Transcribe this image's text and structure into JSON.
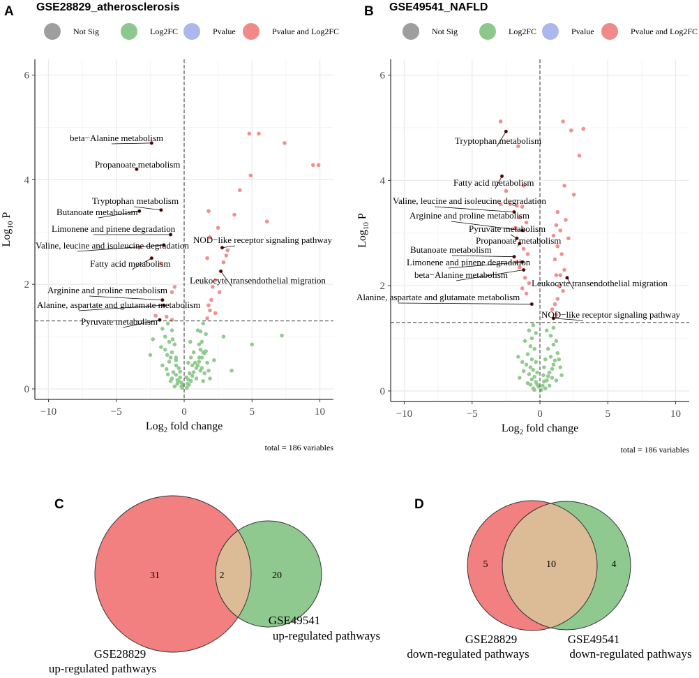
{
  "colors": {
    "not_sig": "#9e9e9e",
    "log2fc": "#8cc88c",
    "pvalue": "#aab8ee",
    "pvalue_and_log2fc": "#f08a8a",
    "venn_left": "#f28080",
    "venn_right": "#8fc98f",
    "venn_overlap": "#dcbc96",
    "grid": "#ebebeb"
  },
  "legend": [
    "Not Sig",
    "Log2FC",
    "Pvalue",
    "Pvalue and Log2FC"
  ],
  "chart_data": [
    {
      "type": "scatter",
      "panel": "A",
      "title": "GSE28829_atherosclerosis",
      "xlabel_main": "Log",
      "xlabel_sub": "2",
      "xlabel_rest": " fold change",
      "ylabel_main": "Log",
      "ylabel_sub": "10",
      "ylabel_rest": " P",
      "xlim": [
        -11,
        11
      ],
      "ylim": [
        -0.2,
        6.3
      ],
      "xticks": [
        -10,
        -5,
        0,
        5,
        10
      ],
      "yticks": [
        0,
        2,
        4,
        6
      ],
      "xtick_labels": [
        "−10",
        "−5",
        "0",
        "5",
        "10"
      ],
      "ytick_labels": [
        "0",
        "2",
        "4",
        "6"
      ],
      "pvalue_cutoff": 1.3,
      "fc_cutoff": 0,
      "total_label": "total = 186 variables",
      "sig_points": [
        [
          4.8,
          4.88
        ],
        [
          5.5,
          4.88
        ],
        [
          7.4,
          4.7
        ],
        [
          9.5,
          4.28
        ],
        [
          9.9,
          4.28
        ],
        [
          4.9,
          4.08
        ],
        [
          4.1,
          3.8
        ],
        [
          1.8,
          3.4
        ],
        [
          3.7,
          3.33
        ],
        [
          6.1,
          3.2
        ],
        [
          2.5,
          3.08
        ],
        [
          1.9,
          2.9
        ],
        [
          2.8,
          2.7
        ],
        [
          3.2,
          2.65
        ],
        [
          1.7,
          2.5
        ],
        [
          3.1,
          2.55
        ],
        [
          2.9,
          2.42
        ],
        [
          2.7,
          2.25
        ],
        [
          2.3,
          2.08
        ],
        [
          2.1,
          1.95
        ],
        [
          2.6,
          1.85
        ],
        [
          2.0,
          1.7
        ],
        [
          1.8,
          1.6
        ],
        [
          1.9,
          1.5
        ],
        [
          2.3,
          1.45
        ],
        [
          1.7,
          1.35
        ],
        [
          -2.4,
          4.7
        ],
        [
          -3.5,
          4.2
        ],
        [
          -3.3,
          3.4
        ],
        [
          -1.7,
          3.42
        ],
        [
          -1.0,
          2.95
        ],
        [
          -1.5,
          2.75
        ],
        [
          -3.3,
          2.7
        ],
        [
          -2.4,
          2.5
        ],
        [
          -1.7,
          2.4
        ],
        [
          -0.7,
          1.95
        ],
        [
          -0.9,
          1.85
        ],
        [
          -1.6,
          1.7
        ],
        [
          -1.5,
          1.6
        ],
        [
          -2.1,
          1.4
        ],
        [
          -1.3,
          1.38
        ],
        [
          -1.8,
          1.32
        ],
        [
          -0.9,
          1.32
        ]
      ],
      "nonsig_points": [
        [
          -1.2,
          1.25
        ],
        [
          -1.6,
          1.15
        ],
        [
          -0.9,
          1.12
        ],
        [
          -1.4,
          1.0
        ],
        [
          -2.3,
          0.95
        ],
        [
          -1.1,
          0.9
        ],
        [
          -0.7,
          0.85
        ],
        [
          -2.5,
          0.65
        ],
        [
          -1.4,
          0.75
        ],
        [
          -0.9,
          0.7
        ],
        [
          -0.6,
          0.6
        ],
        [
          -1.1,
          0.52
        ],
        [
          -0.6,
          0.45
        ],
        [
          -0.4,
          0.4
        ],
        [
          -1.3,
          0.38
        ],
        [
          -0.8,
          0.32
        ],
        [
          -0.6,
          0.27
        ],
        [
          -0.3,
          0.22
        ],
        [
          -0.5,
          0.17
        ],
        [
          -0.2,
          0.12
        ],
        [
          -0.1,
          0.08
        ],
        [
          -0.7,
          0.05
        ],
        [
          -1.0,
          0.6
        ],
        [
          -1.6,
          0.45
        ],
        [
          -1.7,
          0.8
        ],
        [
          -1.2,
          0.28
        ],
        [
          -0.4,
          0.15
        ],
        [
          -0.9,
          0.2
        ],
        [
          -0.3,
          0.33
        ],
        [
          -0.2,
          0.05
        ],
        [
          -0.15,
          0.02
        ],
        [
          -1.0,
          0.15
        ],
        [
          -0.5,
          0.1
        ],
        [
          -0.6,
          0.55
        ],
        [
          -0.85,
          0.95
        ],
        [
          -1.25,
          0.65
        ],
        [
          0.2,
          0.02
        ],
        [
          0.25,
          0.1
        ],
        [
          0.3,
          0.18
        ],
        [
          0.5,
          0.15
        ],
        [
          0.6,
          0.25
        ],
        [
          0.7,
          0.32
        ],
        [
          0.9,
          0.4
        ],
        [
          1.0,
          0.45
        ],
        [
          1.1,
          0.52
        ],
        [
          1.3,
          0.6
        ],
        [
          1.5,
          0.68
        ],
        [
          1.6,
          0.72
        ],
        [
          1.4,
          0.7
        ],
        [
          1.2,
          0.75
        ],
        [
          1.1,
          0.85
        ],
        [
          0.8,
          0.5
        ],
        [
          0.6,
          0.45
        ],
        [
          0.4,
          0.3
        ],
        [
          1.2,
          1.1
        ],
        [
          1.0,
          1.12
        ],
        [
          1.4,
          1.25
        ],
        [
          1.6,
          1.05
        ],
        [
          1.1,
          0.6
        ],
        [
          1.3,
          0.4
        ],
        [
          1.5,
          0.3
        ],
        [
          1.8,
          0.35
        ],
        [
          0.9,
          0.2
        ],
        [
          1.4,
          0.15
        ],
        [
          2.2,
          0.55
        ],
        [
          0.5,
          0.6
        ],
        [
          0.3,
          0.5
        ],
        [
          0.35,
          0.08
        ],
        [
          0.15,
          0.22
        ],
        [
          1.7,
          0.5
        ],
        [
          1.2,
          0.35
        ],
        [
          1.9,
          0.2
        ],
        [
          3.5,
          0.35
        ],
        [
          5.0,
          0.85
        ],
        [
          7.2,
          1.02
        ],
        [
          2.9,
          1.0
        ],
        [
          1.3,
          0.9
        ],
        [
          0.7,
          0.7
        ],
        [
          0.45,
          0.9
        ]
      ],
      "annotations": [
        {
          "label": "beta−Alanine metabolism",
          "px": -2.4,
          "py": 4.7
        },
        {
          "label": "Propanoate metabolism",
          "px": -3.5,
          "py": 4.2
        },
        {
          "label": "Tryptophan metabolism",
          "px": -1.7,
          "py": 3.42
        },
        {
          "label": "Butanoate metabolism",
          "px": -3.3,
          "py": 3.4
        },
        {
          "label": "Limonene and pinene degradation",
          "px": -1.0,
          "py": 2.95
        },
        {
          "label": "Valine, leucine and isoleucine degradation",
          "px": -1.5,
          "py": 2.75
        },
        {
          "label": "Fatty acid metabolism",
          "px": -2.4,
          "py": 2.5
        },
        {
          "label": "Arginine and proline metabolism",
          "px": -1.6,
          "py": 1.7
        },
        {
          "label": "Alanine, aspartate and glutamate metabolism",
          "px": -1.5,
          "py": 1.6
        },
        {
          "label": "Pyruvate metabolism",
          "px": -1.8,
          "py": 1.32
        },
        {
          "label": "NOD−like receptor signaling pathway",
          "px": 2.8,
          "py": 2.7
        },
        {
          "label": "Leukocyte transendothelial migration",
          "px": 2.7,
          "py": 2.25
        }
      ]
    },
    {
      "type": "scatter",
      "panel": "B",
      "title": "GSE49541_NAFLD",
      "xlabel_main": "Log",
      "xlabel_sub": "2",
      "xlabel_rest": " fold change",
      "ylabel_main": "Log",
      "ylabel_sub": "10",
      "ylabel_rest": " P",
      "xlim": [
        -11,
        11
      ],
      "ylim": [
        -0.2,
        6.3
      ],
      "xticks": [
        -10,
        -5,
        0,
        5,
        10
      ],
      "yticks": [
        0,
        2,
        4,
        6
      ],
      "xtick_labels": [
        "−10",
        "−5",
        "0",
        "5",
        "10"
      ],
      "ytick_labels": [
        "0",
        "2",
        "4",
        "6"
      ],
      "pvalue_cutoff": 1.3,
      "fc_cutoff": 0,
      "total_label": "total = 186 variables",
      "sig_points": [
        [
          -2.9,
          5.12
        ],
        [
          -2.5,
          4.93
        ],
        [
          -1.6,
          4.65
        ],
        [
          -2.8,
          4.08
        ],
        [
          -2.5,
          3.8
        ],
        [
          -1.2,
          3.9
        ],
        [
          -2.9,
          3.55
        ],
        [
          -2.2,
          3.55
        ],
        [
          -1.7,
          3.52
        ],
        [
          -1.3,
          3.5
        ],
        [
          -1.9,
          3.4
        ],
        [
          -1.5,
          3.3
        ],
        [
          -1.0,
          3.2
        ],
        [
          -1.8,
          3.1
        ],
        [
          -1.2,
          3.05
        ],
        [
          -1.7,
          2.9
        ],
        [
          -1.5,
          2.8
        ],
        [
          -1.2,
          2.7
        ],
        [
          -1.9,
          2.55
        ],
        [
          -1.3,
          2.45
        ],
        [
          -0.9,
          2.6
        ],
        [
          -1.7,
          2.45
        ],
        [
          -1.5,
          2.35
        ],
        [
          -1.2,
          2.3
        ],
        [
          -1.1,
          2.15
        ],
        [
          -0.8,
          2.05
        ],
        [
          -1.3,
          1.95
        ],
        [
          -1.0,
          1.85
        ],
        [
          -0.6,
          1.65
        ],
        [
          1.7,
          5.12
        ],
        [
          2.3,
          4.95
        ],
        [
          3.2,
          4.98
        ],
        [
          2.9,
          4.47
        ],
        [
          1.8,
          3.9
        ],
        [
          2.5,
          3.73
        ],
        [
          1.3,
          3.4
        ],
        [
          1.9,
          3.25
        ],
        [
          1.2,
          3.15
        ],
        [
          1.5,
          3.05
        ],
        [
          1.0,
          2.95
        ],
        [
          2.1,
          2.9
        ],
        [
          1.3,
          2.75
        ],
        [
          1.6,
          2.6
        ],
        [
          1.1,
          2.5
        ],
        [
          1.8,
          2.3
        ],
        [
          1.5,
          2.2
        ],
        [
          1.2,
          2.2
        ],
        [
          2.0,
          2.15
        ],
        [
          1.4,
          2.0
        ],
        [
          1.7,
          1.9
        ],
        [
          1.3,
          1.75
        ],
        [
          1.1,
          1.65
        ],
        [
          0.9,
          1.55
        ],
        [
          1.2,
          1.45
        ],
        [
          1.0,
          1.38
        ]
      ],
      "nonsig_points": [
        [
          -0.5,
          1.25
        ],
        [
          -0.8,
          1.15
        ],
        [
          -0.3,
          1.1
        ],
        [
          -0.6,
          1.0
        ],
        [
          -1.1,
          0.95
        ],
        [
          -0.7,
          0.85
        ],
        [
          -0.4,
          0.8
        ],
        [
          -0.9,
          0.7
        ],
        [
          -1.6,
          0.65
        ],
        [
          -0.6,
          0.6
        ],
        [
          -0.3,
          0.55
        ],
        [
          -1.0,
          0.5
        ],
        [
          -0.7,
          0.45
        ],
        [
          -0.5,
          0.4
        ],
        [
          -1.2,
          0.38
        ],
        [
          -0.8,
          0.32
        ],
        [
          -0.4,
          0.27
        ],
        [
          -0.6,
          0.22
        ],
        [
          -0.3,
          0.17
        ],
        [
          -0.2,
          0.12
        ],
        [
          -0.1,
          0.08
        ],
        [
          -0.5,
          0.05
        ],
        [
          -0.9,
          0.15
        ],
        [
          -1.3,
          0.55
        ],
        [
          -0.2,
          0.35
        ],
        [
          -0.7,
          0.12
        ],
        [
          -0.4,
          0.02
        ],
        [
          -1.5,
          0.25
        ],
        [
          0.1,
          0.02
        ],
        [
          0.2,
          0.1
        ],
        [
          0.3,
          0.18
        ],
        [
          0.5,
          0.2
        ],
        [
          0.6,
          0.28
        ],
        [
          0.7,
          0.35
        ],
        [
          0.9,
          0.42
        ],
        [
          1.0,
          0.5
        ],
        [
          1.1,
          0.58
        ],
        [
          0.8,
          0.65
        ],
        [
          1.3,
          0.72
        ],
        [
          0.6,
          0.8
        ],
        [
          1.0,
          0.88
        ],
        [
          1.2,
          0.95
        ],
        [
          0.8,
          1.05
        ],
        [
          0.5,
          1.15
        ],
        [
          1.0,
          1.2
        ],
        [
          0.4,
          0.6
        ],
        [
          0.3,
          0.45
        ],
        [
          1.4,
          0.6
        ],
        [
          1.5,
          0.45
        ],
        [
          0.7,
          0.1
        ],
        [
          0.4,
          0.05
        ],
        [
          0.9,
          0.25
        ],
        [
          1.6,
          0.3
        ],
        [
          1.2,
          0.2
        ],
        [
          0.25,
          0.3
        ]
      ],
      "annotations": [
        {
          "label": "Tryptophan metabolism",
          "px": -2.5,
          "py": 4.93
        },
        {
          "label": "Fatty acid metabolism",
          "px": -2.8,
          "py": 4.08
        },
        {
          "label": "Valine, leucine and isoleucine degradation",
          "px": -1.9,
          "py": 3.4
        },
        {
          "label": "Arginine and proline metabolism",
          "px": -1.3,
          "py": 3.05
        },
        {
          "label": "Pyruvate metabolism",
          "px": -1.7,
          "py": 2.9
        },
        {
          "label": "Propanoate metabolism",
          "px": -1.5,
          "py": 2.8
        },
        {
          "label": "Butanoate metabolism",
          "px": -1.9,
          "py": 2.55
        },
        {
          "label": "Limonene and pinene degradation",
          "px": -1.3,
          "py": 2.45
        },
        {
          "label": "beta−Alanine metabolism",
          "px": -1.2,
          "py": 2.3
        },
        {
          "label": "Alanine, aspartate and glutamate metabolism",
          "px": -0.6,
          "py": 1.65
        },
        {
          "label": "Leukocyte transendothelial migration",
          "px": 2.0,
          "py": 2.15
        },
        {
          "label": "NOD−like receptor signaling pathway",
          "px": 1.0,
          "py": 1.38
        }
      ]
    },
    {
      "type": "venn",
      "panel": "C",
      "left_only": "31",
      "overlap": "2",
      "right_only": "20",
      "left_label_line1": "GSE28829",
      "left_label_line2": "up-regulated pathways",
      "right_label_line1": "GSE49541",
      "right_label_line2": "up-regulated pathways"
    },
    {
      "type": "venn",
      "panel": "D",
      "left_only": "5",
      "overlap": "10",
      "right_only": "4",
      "left_label_line1": "GSE28829",
      "left_label_line2": "down-regulated pathways",
      "right_label_line1": "GSE49541",
      "right_label_line2": "down-regulated pathways"
    }
  ]
}
